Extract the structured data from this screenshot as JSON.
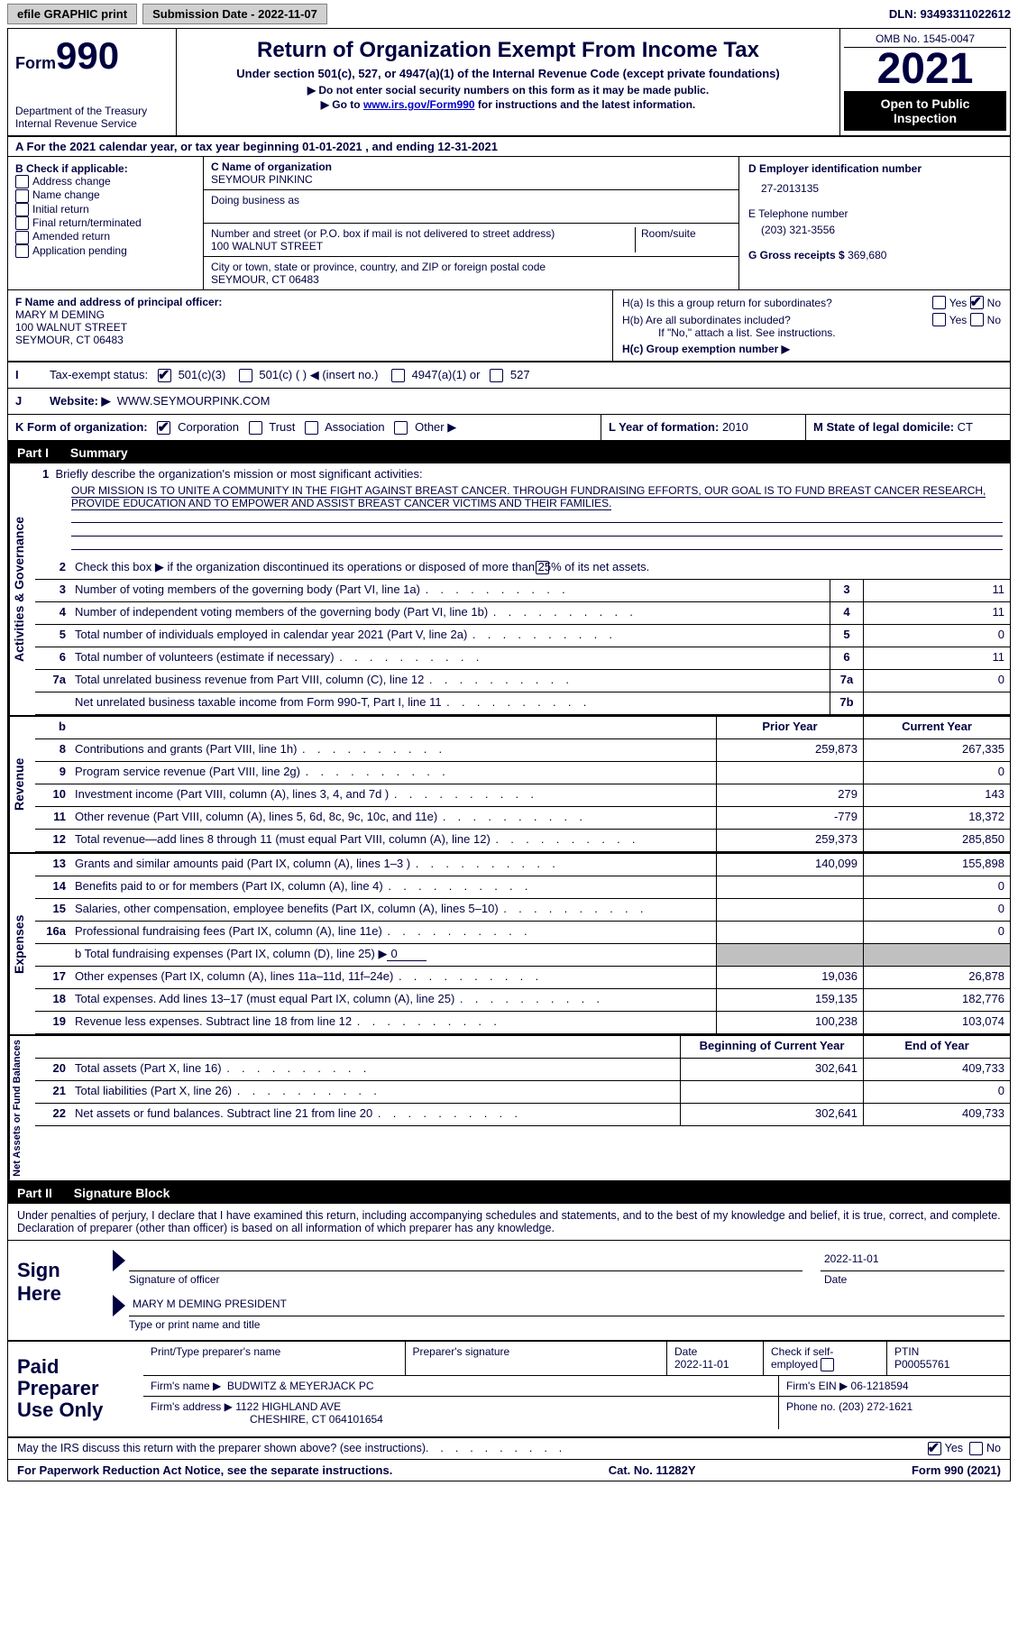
{
  "topbar": {
    "efile": "efile GRAPHIC print",
    "sub_label": "Submission Date - 2022-11-07",
    "dln_label": "DLN: 93493311022612"
  },
  "header": {
    "form_word": "Form",
    "form_num": "990",
    "dept": "Department of the Treasury",
    "irs": "Internal Revenue Service",
    "title": "Return of Organization Exempt From Income Tax",
    "subtitle": "Under section 501(c), 527, or 4947(a)(1) of the Internal Revenue Code (except private foundations)",
    "instr1": "▶ Do not enter social security numbers on this form as it may be made public.",
    "instr2_pre": "▶ Go to ",
    "instr2_link": "www.irs.gov/Form990",
    "instr2_post": " for instructions and the latest information.",
    "omb": "OMB No. 1545-0047",
    "year": "2021",
    "open": "Open to Public Inspection"
  },
  "rowA": "For the 2021 calendar year, or tax year beginning 01-01-2021    , and ending 12-31-2021",
  "boxB": {
    "label": "B Check if applicable:",
    "items": [
      "Address change",
      "Name change",
      "Initial return",
      "Final return/terminated",
      "Amended return",
      "Application pending"
    ]
  },
  "boxC": {
    "name_lbl": "C Name of organization",
    "name": "SEYMOUR PINKINC",
    "dba_lbl": "Doing business as",
    "street_lbl": "Number and street (or P.O. box if mail is not delivered to street address)",
    "room_lbl": "Room/suite",
    "street": "100 WALNUT STREET",
    "city_lbl": "City or town, state or province, country, and ZIP or foreign postal code",
    "city": "SEYMOUR, CT  06483"
  },
  "boxD": {
    "ein_lbl": "D Employer identification number",
    "ein": "27-2013135",
    "phone_lbl": "E Telephone number",
    "phone": "(203) 321-3556",
    "gross_lbl": "G Gross receipts $",
    "gross": "369,680"
  },
  "boxF": {
    "lbl": "F Name and address of principal officer:",
    "name": "MARY M DEMING",
    "street": "100 WALNUT STREET",
    "city": "SEYMOUR, CT  06483"
  },
  "boxH": {
    "ha": "H(a)  Is this a group return for subordinates?",
    "hb": "H(b)  Are all subordinates included?",
    "hb_note": "If \"No,\" attach a list. See instructions.",
    "hc": "H(c)  Group exemption number ▶",
    "yes": "Yes",
    "no": "No"
  },
  "rowI": {
    "lbl": "Tax-exempt status:",
    "o1": "501(c)(3)",
    "o2": "501(c) (   ) ◀ (insert no.)",
    "o3": "4947(a)(1) or",
    "o4": "527"
  },
  "rowJ": {
    "lbl": "Website: ▶",
    "val": "WWW.SEYMOURPINK.COM"
  },
  "rowK": {
    "lbl": "K Form of organization:",
    "o1": "Corporation",
    "o2": "Trust",
    "o3": "Association",
    "o4": "Other ▶",
    "l_lbl": "L Year of formation:",
    "l_val": "2010",
    "m_lbl": "M State of legal domicile:",
    "m_val": "CT"
  },
  "part1": {
    "label": "Part I",
    "title": "Summary"
  },
  "mission": {
    "lbl": "1   Briefly describe the organization's mission or most significant activities:",
    "text": "OUR MISSION IS TO UNITE A COMMUNITY IN THE FIGHT AGAINST BREAST CANCER. THROUGH FUNDRAISING EFFORTS, OUR GOAL IS TO FUND BREAST CANCER RESEARCH, PROVIDE EDUCATION AND TO EMPOWER AND ASSIST BREAST CANCER VICTIMS AND THEIR FAMILIES."
  },
  "gov": {
    "label": "Activities & Governance",
    "l2": "Check this box ▶        if the organization discontinued its operations or disposed of more than 25% of its net assets.",
    "rows": [
      {
        "n": "3",
        "t": "Number of voting members of the governing body (Part VI, line 1a)",
        "b": "3",
        "v": "11"
      },
      {
        "n": "4",
        "t": "Number of independent voting members of the governing body (Part VI, line 1b)",
        "b": "4",
        "v": "11"
      },
      {
        "n": "5",
        "t": "Total number of individuals employed in calendar year 2021 (Part V, line 2a)",
        "b": "5",
        "v": "0"
      },
      {
        "n": "6",
        "t": "Total number of volunteers (estimate if necessary)",
        "b": "6",
        "v": "11"
      },
      {
        "n": "7a",
        "t": "Total unrelated business revenue from Part VIII, column (C), line 12",
        "b": "7a",
        "v": "0"
      },
      {
        "n": "",
        "t": "Net unrelated business taxable income from Form 990-T, Part I, line 11",
        "b": "7b",
        "v": ""
      }
    ]
  },
  "rev": {
    "label": "Revenue",
    "head_prior": "Prior Year",
    "head_curr": "Current Year",
    "rows": [
      {
        "n": "8",
        "t": "Contributions and grants (Part VIII, line 1h)",
        "p": "259,873",
        "c": "267,335"
      },
      {
        "n": "9",
        "t": "Program service revenue (Part VIII, line 2g)",
        "p": "",
        "c": "0"
      },
      {
        "n": "10",
        "t": "Investment income (Part VIII, column (A), lines 3, 4, and 7d )",
        "p": "279",
        "c": "143"
      },
      {
        "n": "11",
        "t": "Other revenue (Part VIII, column (A), lines 5, 6d, 8c, 9c, 10c, and 11e)",
        "p": "-779",
        "c": "18,372"
      },
      {
        "n": "12",
        "t": "Total revenue—add lines 8 through 11 (must equal Part VIII, column (A), line 12)",
        "p": "259,373",
        "c": "285,850"
      }
    ]
  },
  "exp": {
    "label": "Expenses",
    "rows": [
      {
        "n": "13",
        "t": "Grants and similar amounts paid (Part IX, column (A), lines 1–3 )",
        "p": "140,099",
        "c": "155,898"
      },
      {
        "n": "14",
        "t": "Benefits paid to or for members (Part IX, column (A), line 4)",
        "p": "",
        "c": "0"
      },
      {
        "n": "15",
        "t": "Salaries, other compensation, employee benefits (Part IX, column (A), lines 5–10)",
        "p": "",
        "c": "0"
      },
      {
        "n": "16a",
        "t": "Professional fundraising fees (Part IX, column (A), line 11e)",
        "p": "",
        "c": "0"
      }
    ],
    "l16b_pre": "b   Total fundraising expenses (Part IX, column (D), line 25) ▶",
    "l16b_val": "0",
    "rows2": [
      {
        "n": "17",
        "t": "Other expenses (Part IX, column (A), lines 11a–11d, 11f–24e)",
        "p": "19,036",
        "c": "26,878"
      },
      {
        "n": "18",
        "t": "Total expenses. Add lines 13–17 (must equal Part IX, column (A), line 25)",
        "p": "159,135",
        "c": "182,776"
      },
      {
        "n": "19",
        "t": "Revenue less expenses. Subtract line 18 from line 12",
        "p": "100,238",
        "c": "103,074"
      }
    ]
  },
  "net": {
    "label": "Net Assets or Fund Balances",
    "head_beg": "Beginning of Current Year",
    "head_end": "End of Year",
    "rows": [
      {
        "n": "20",
        "t": "Total assets (Part X, line 16)",
        "p": "302,641",
        "c": "409,733"
      },
      {
        "n": "21",
        "t": "Total liabilities (Part X, line 26)",
        "p": "",
        "c": "0"
      },
      {
        "n": "22",
        "t": "Net assets or fund balances. Subtract line 21 from line 20",
        "p": "302,641",
        "c": "409,733"
      }
    ]
  },
  "part2": {
    "label": "Part II",
    "title": "Signature Block"
  },
  "sig": {
    "decl": "Under penalties of perjury, I declare that I have examined this return, including accompanying schedules and statements, and to the best of my knowledge and belief, it is true, correct, and complete. Declaration of preparer (other than officer) is based on all information of which preparer has any knowledge.",
    "sign_here": "Sign Here",
    "date": "2022-11-01",
    "sig_officer": "Signature of officer",
    "date_lbl": "Date",
    "name": "MARY M DEMING  PRESIDENT",
    "name_lbl": "Type or print name and title"
  },
  "paid": {
    "label": "Paid Preparer Use Only",
    "h1": "Print/Type preparer's name",
    "h2": "Preparer's signature",
    "h3": "Date",
    "h3v": "2022-11-01",
    "h4": "Check         if self-employed",
    "h5": "PTIN",
    "h5v": "P00055761",
    "firm_name_lbl": "Firm's name      ▶",
    "firm_name": "BUDWITZ & MEYERJACK PC",
    "firm_ein_lbl": "Firm's EIN ▶",
    "firm_ein": "06-1218594",
    "firm_addr_lbl": "Firm's address ▶",
    "firm_addr1": "1122 HIGHLAND AVE",
    "firm_addr2": "CHESHIRE, CT  064101654",
    "phone_lbl": "Phone no.",
    "phone": "(203) 272-1621"
  },
  "footer": {
    "discuss": "May the IRS discuss this return with the preparer shown above? (see instructions)",
    "yes": "Yes",
    "no": "No",
    "pra": "For Paperwork Reduction Act Notice, see the separate instructions.",
    "cat": "Cat. No. 11282Y",
    "form": "Form 990 (2021)"
  }
}
